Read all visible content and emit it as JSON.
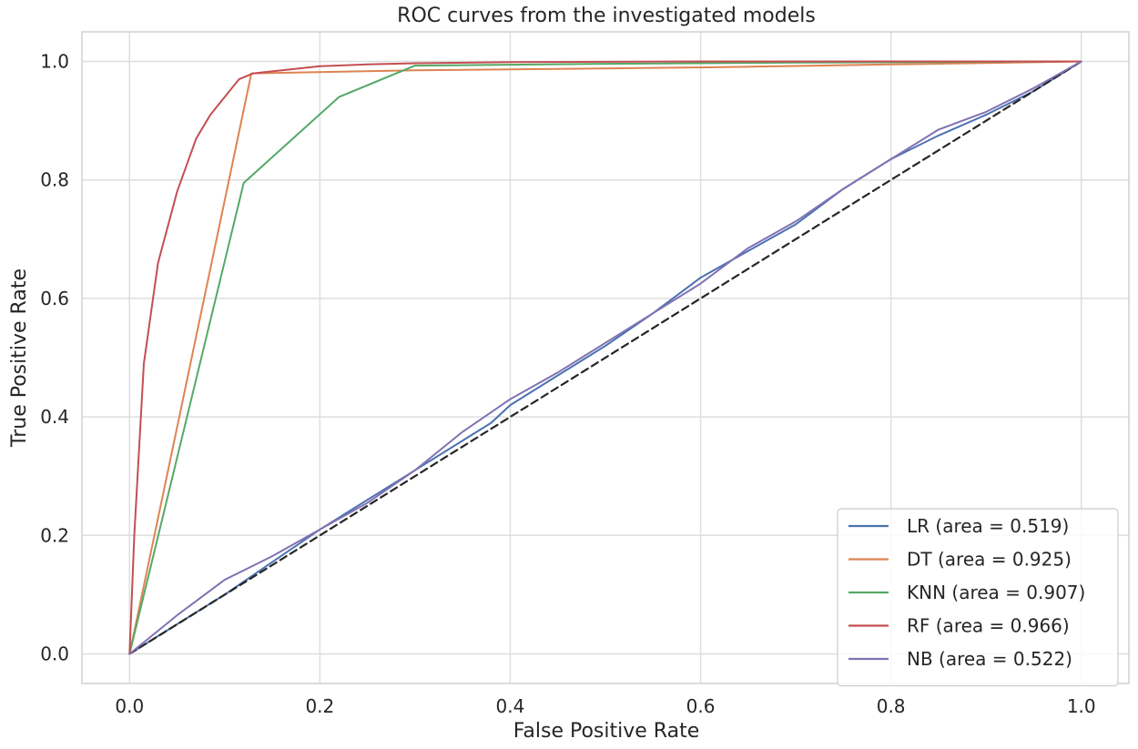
{
  "chart_data": {
    "type": "line",
    "title": "ROC curves from the investigated models",
    "xlabel": "False Positive Rate",
    "ylabel": "True Positive Rate",
    "xlim": [
      -0.05,
      1.05
    ],
    "ylim": [
      -0.05,
      1.05
    ],
    "xticks": [
      "0.0",
      "0.2",
      "0.4",
      "0.6",
      "0.8",
      "1.0"
    ],
    "yticks": [
      "0.0",
      "0.2",
      "0.4",
      "0.6",
      "0.8",
      "1.0"
    ],
    "grid": true,
    "legend_position": "lower-right",
    "series": [
      {
        "name": "LR (area = 0.519)",
        "color": "#4c72b0",
        "x": [
          0,
          0.05,
          0.1,
          0.15,
          0.2,
          0.25,
          0.3,
          0.35,
          0.38,
          0.4,
          0.45,
          0.5,
          0.55,
          0.6,
          0.65,
          0.7,
          0.75,
          0.8,
          0.85,
          0.9,
          0.95,
          1.0
        ],
        "y": [
          0,
          0.05,
          0.1,
          0.155,
          0.21,
          0.26,
          0.31,
          0.36,
          0.39,
          0.42,
          0.47,
          0.52,
          0.575,
          0.635,
          0.68,
          0.725,
          0.785,
          0.835,
          0.875,
          0.91,
          0.95,
          1.0
        ]
      },
      {
        "name": "DT (area = 0.925)",
        "color": "#dd8452",
        "x": [
          0,
          0.128,
          0.3,
          0.6,
          0.8,
          1.0
        ],
        "y": [
          0,
          0.98,
          0.985,
          0.99,
          0.995,
          1.0
        ]
      },
      {
        "name": "KNN (area = 0.907)",
        "color": "#55a868",
        "x": [
          0,
          0.12,
          0.22,
          0.3,
          0.5,
          0.7,
          1.0
        ],
        "y": [
          0,
          0.795,
          0.94,
          0.993,
          0.996,
          0.998,
          1.0
        ]
      },
      {
        "name": "RF (area = 0.966)",
        "color": "#c44e52",
        "x": [
          0,
          0.005,
          0.015,
          0.03,
          0.05,
          0.07,
          0.085,
          0.1,
          0.115,
          0.13,
          0.16,
          0.2,
          0.25,
          0.3,
          0.4,
          0.6,
          0.8,
          1.0
        ],
        "y": [
          0,
          0.2,
          0.49,
          0.66,
          0.78,
          0.87,
          0.91,
          0.94,
          0.97,
          0.98,
          0.985,
          0.992,
          0.995,
          0.997,
          0.999,
          1.0,
          1.0,
          1.0
        ]
      },
      {
        "name": "NB (area = 0.522)",
        "color": "#8172b3",
        "x": [
          0,
          0.05,
          0.1,
          0.15,
          0.2,
          0.25,
          0.3,
          0.35,
          0.4,
          0.45,
          0.5,
          0.55,
          0.6,
          0.65,
          0.7,
          0.75,
          0.8,
          0.85,
          0.9,
          0.95,
          1.0
        ],
        "y": [
          0,
          0.065,
          0.125,
          0.165,
          0.21,
          0.255,
          0.31,
          0.375,
          0.43,
          0.475,
          0.525,
          0.575,
          0.625,
          0.685,
          0.73,
          0.785,
          0.835,
          0.885,
          0.915,
          0.955,
          1.0
        ]
      },
      {
        "color": "#262626",
        "dashed": true,
        "x": [
          0,
          1
        ],
        "y": [
          0,
          1
        ]
      }
    ]
  }
}
